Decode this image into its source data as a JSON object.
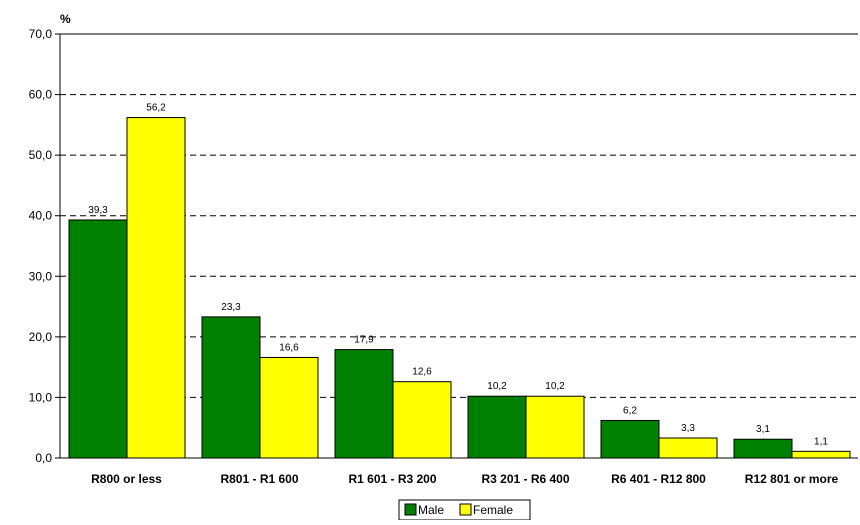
{
  "chart_data": {
    "type": "bar",
    "unit_label": "%",
    "categories": [
      "R800 or less",
      "R801 - R1 600",
      "R1 601 - R3 200",
      "R3 201 - R6 400",
      "R6 401 - R12 800",
      "R12 801 or more"
    ],
    "series": [
      {
        "name": "Male",
        "color": "#008000",
        "values": [
          39.3,
          23.3,
          17.9,
          10.2,
          6.2,
          3.1
        ],
        "labels": [
          "39,3",
          "23,3",
          "17,9",
          "10,2",
          "6,2",
          "3,1"
        ]
      },
      {
        "name": "Female",
        "color": "#ffff00",
        "values": [
          56.2,
          16.6,
          12.6,
          10.2,
          3.3,
          1.1
        ],
        "labels": [
          "56,2",
          "16,6",
          "12,6",
          "10,2",
          "3,3",
          "1,1"
        ]
      }
    ],
    "ylim": [
      0,
      70
    ],
    "yticks": [
      "0,0",
      "10,0",
      "20,0",
      "30,0",
      "40,0",
      "50,0",
      "60,0",
      "70,0"
    ],
    "grid": "dashed horizontal",
    "legend_position": "bottom-center"
  }
}
